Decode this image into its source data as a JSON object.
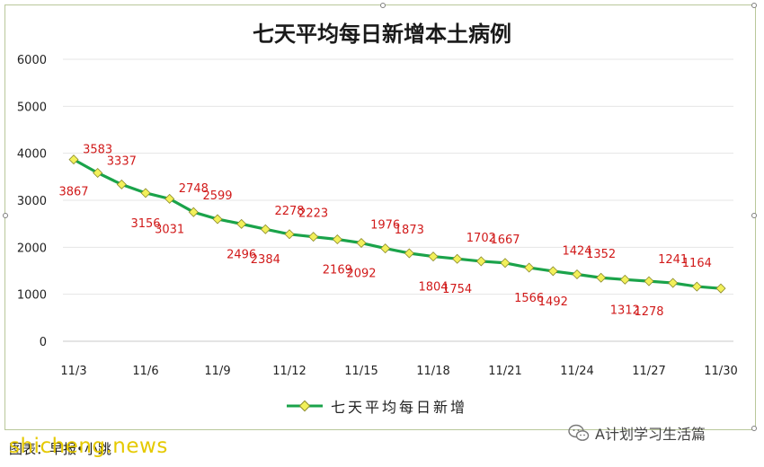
{
  "chart_data": {
    "type": "line",
    "title": "七天平均每日新增本土病例",
    "xlabel": "",
    "ylabel": "",
    "ylim": [
      0,
      6000
    ],
    "yticks": [
      0,
      1000,
      2000,
      3000,
      4000,
      5000,
      6000
    ],
    "grid": true,
    "legend_position": "bottom",
    "x": [
      "11/3",
      "11/4",
      "11/5",
      "11/6",
      "11/7",
      "11/8",
      "11/9",
      "11/10",
      "11/11",
      "11/12",
      "11/13",
      "11/14",
      "11/15",
      "11/16",
      "11/17",
      "11/18",
      "11/19",
      "11/20",
      "11/21",
      "11/22",
      "11/23",
      "11/24",
      "11/25",
      "11/26",
      "11/27",
      "11/28",
      "11/29",
      "11/30"
    ],
    "x_tick_labels": [
      "11/3",
      "11/6",
      "11/9",
      "11/12",
      "11/15",
      "11/18",
      "11/21",
      "11/24",
      "11/27",
      "11/30"
    ],
    "series": [
      {
        "name": "七天平均每日新增",
        "color": "#1aa34a",
        "marker_color": "#f2f05a",
        "values": [
          3867,
          3583,
          3337,
          3156,
          3031,
          2748,
          2599,
          2496,
          2384,
          2278,
          2223,
          2169,
          2092,
          1976,
          1873,
          1804,
          1754,
          1702,
          1667,
          1566,
          1492,
          1424,
          1352,
          1312,
          1278,
          1241,
          1164,
          1124
        ]
      }
    ],
    "data_label_color": "#d11a1a",
    "highlight_last": "1124"
  },
  "footer": {
    "credit": "图表：早报•小跳",
    "watermark": "shicheng.news",
    "brand": "A计划学习生活篇",
    "brand_icon": "wechat-icon"
  }
}
